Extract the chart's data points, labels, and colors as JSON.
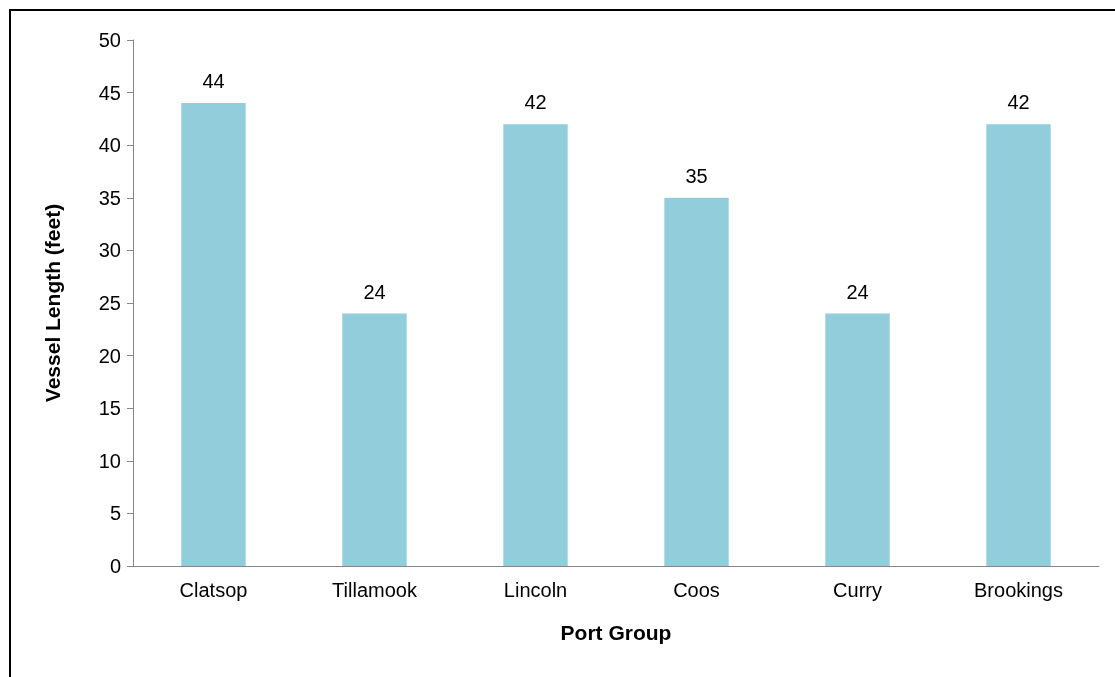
{
  "chart_data": {
    "type": "bar",
    "xlabel": "Port Group",
    "ylabel": "Vessel Length (feet)",
    "categories": [
      "Clatsop",
      "Tillamook",
      "Lincoln",
      "Coos",
      "Curry",
      "Brookings"
    ],
    "values": [
      44,
      24,
      42,
      35,
      24,
      42
    ],
    "color": "#92cddc",
    "ylim": [
      0,
      50
    ],
    "yticks": [
      0,
      5,
      10,
      15,
      20,
      25,
      30,
      35,
      40,
      45,
      50
    ],
    "grid": false,
    "data_labels": true
  }
}
